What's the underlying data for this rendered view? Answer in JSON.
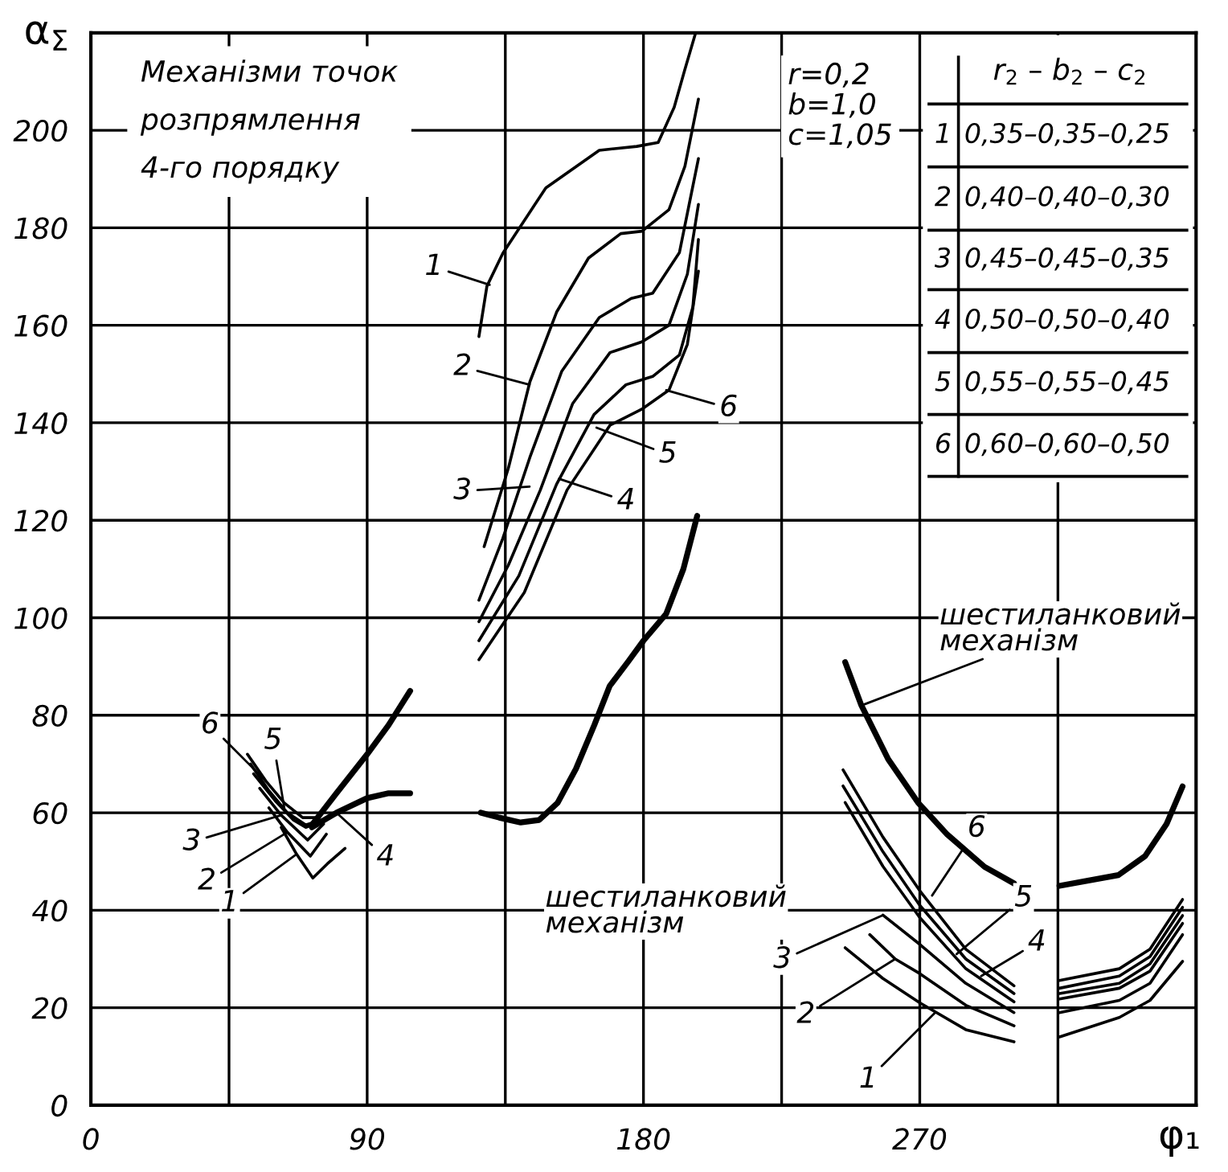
{
  "chart_data": {
    "type": "line",
    "title": "Механізми точок\nрозпрямлення\n4-го порядку",
    "xlabel": "φ₁",
    "ylabel": "α$_{Σ}$",
    "xlim": [
      0,
      360
    ],
    "ylim": [
      0,
      220
    ],
    "xticks": [
      0,
      {
        "value": 45,
        "label": null
      },
      90,
      {
        "value": 135,
        "label": null
      },
      180,
      {
        "value": 225,
        "label": null
      },
      270,
      {
        "value": 315,
        "label": null
      }
    ],
    "yticks": [
      0,
      20,
      40,
      60,
      80,
      100,
      120,
      140,
      160,
      180,
      200
    ],
    "grid": true,
    "legend": false,
    "marker": "none",
    "line_style": "solid",
    "series": [
      {
        "color": "#000000",
        "x": [
          126.4,
          129,
          134.2,
          148.2,
          165.6,
          177.8,
          184.8,
          190,
          193.5,
          197
        ],
        "values": [
          157.7,
          168,
          174.8,
          188.2,
          195.9,
          196.7,
          197.5,
          204.7,
          212.5,
          220
        ]
      },
      {
        "color": "#000000",
        "x": [
          128.1,
          136,
          143,
          151.7,
          162.1,
          172.6,
          179.5,
          188.3,
          193.5,
          197.9
        ],
        "values": [
          114.6,
          130.7,
          148.4,
          162.7,
          173.8,
          178.8,
          179.3,
          183.7,
          192.6,
          206.4
        ]
      },
      {
        "color": "#000000",
        "x": [
          126.4,
          134.2,
          143,
          153.4,
          165.6,
          176,
          183,
          191.7,
          197.9
        ],
        "values": [
          103.6,
          116.3,
          132.9,
          150.6,
          161.6,
          165.5,
          166.6,
          174.9,
          194.2
        ]
      },
      {
        "color": "#000000",
        "x": [
          126.4,
          136,
          146.4,
          156.9,
          169.1,
          179.5,
          188.3,
          194.3,
          197.9
        ],
        "values": [
          99.2,
          110.8,
          126.2,
          143.9,
          154.4,
          156.6,
          160,
          170.5,
          184.8
        ]
      },
      {
        "color": "#000000",
        "x": [
          126.4,
          139.4,
          151.7,
          163.9,
          174.3,
          183,
          191.7,
          196.1,
          197.9
        ],
        "values": [
          95.3,
          108.6,
          127.4,
          141.7,
          147.8,
          149.5,
          153.9,
          163.8,
          177.6
        ]
      },
      {
        "color": "#000000",
        "x": [
          126.4,
          141.2,
          155.1,
          169.1,
          179.5,
          188.3,
          194.3,
          197.9
        ],
        "values": [
          91.4,
          105.2,
          126.2,
          139.5,
          142.8,
          146.7,
          156.1,
          171.1
        ]
      },
      {
        "color": "#000000",
        "x": [
          127,
          133,
          140,
          146,
          152,
          158,
          164,
          169,
          175,
          180,
          187.4,
          193,
          197.5
        ],
        "values": [
          60,
          59,
          58,
          58.5,
          62,
          69,
          78,
          86,
          91,
          95.3,
          100.8,
          110,
          120.9
        ]
      },
      {
        "color": "#000000",
        "x": [
          62,
          67,
          72.3,
          77,
          82.8
        ],
        "values": [
          57,
          51.5,
          46.6,
          49.5,
          52.7
        ]
      },
      {
        "color": "#000000",
        "x": [
          58,
          64,
          71.5,
          76.7
        ],
        "values": [
          61,
          56,
          51.1,
          55.6
        ]
      },
      {
        "color": "#000000",
        "x": [
          55,
          62,
          70.6,
          75.8
        ],
        "values": [
          65,
          59.5,
          54.4,
          57.7
        ]
      },
      {
        "color": "#000000",
        "x": [
          53,
          60,
          66,
          70,
          74
        ],
        "values": [
          68,
          62.5,
          58.5,
          57,
          58
        ]
      },
      {
        "color": "#000000",
        "x": [
          52,
          58,
          64,
          70,
          75
        ],
        "values": [
          70,
          64.5,
          60,
          57.5,
          58.5
        ]
      },
      {
        "color": "#000000",
        "x": [
          51,
          57,
          63,
          69,
          74
        ],
        "values": [
          72,
          66.5,
          62,
          59,
          59
        ]
      },
      {
        "color": "#000000",
        "x": [
          72,
          80,
          90,
          97,
          104
        ],
        "values": [
          57.5,
          64,
          72,
          78,
          85
        ]
      },
      {
        "color": "#000000",
        "x": [
          72,
          80,
          90,
          97,
          104
        ],
        "values": [
          57,
          60,
          63,
          64,
          64
        ]
      },
      {
        "color": "#000000",
        "x": [
          245.7,
          258,
          270,
          285,
          300.7
        ],
        "values": [
          32.3,
          26,
          21,
          15.5,
          13
        ]
      },
      {
        "color": "#000000",
        "x": [
          253.7,
          262,
          270,
          285,
          300.7
        ],
        "values": [
          35,
          30,
          27,
          20.5,
          16.3
        ]
      },
      {
        "color": "#000000",
        "x": [
          258,
          270,
          285,
          300.7
        ],
        "values": [
          39,
          33,
          25,
          19
        ]
      },
      {
        "color": "#000000",
        "x": [
          245.7,
          258,
          270,
          285,
          300.7
        ],
        "values": [
          62.1,
          49,
          38.5,
          28,
          21.2
        ]
      },
      {
        "color": "#000000",
        "x": [
          245,
          258,
          270,
          285,
          300.7
        ],
        "values": [
          65.5,
          52,
          41,
          30,
          22.9
        ]
      },
      {
        "color": "#000000",
        "x": [
          245,
          258,
          270,
          285,
          300.7
        ],
        "values": [
          68.8,
          55,
          44,
          32,
          24.5
        ]
      },
      {
        "color": "#000000",
        "x": [
          245.7,
          251,
          259.7,
          269.4,
          279,
          291.1,
          300.7
        ],
        "values": [
          90.9,
          82,
          71,
          62.1,
          55.5,
          48.9,
          45.5
        ]
      },
      {
        "color": "#000000",
        "x": [
          315.5,
          335,
          345,
          355.6
        ],
        "values": [
          14,
          18,
          21.5,
          29.5
        ]
      },
      {
        "color": "#000000",
        "x": [
          315.5,
          335,
          345,
          355.6
        ],
        "values": [
          19,
          21.5,
          25,
          35
        ]
      },
      {
        "color": "#000000",
        "x": [
          315.5,
          335,
          345,
          355.6
        ],
        "values": [
          21.8,
          24,
          27.5,
          37.3
        ]
      },
      {
        "color": "#000000",
        "x": [
          315.5,
          335,
          345,
          355.6
        ],
        "values": [
          22.9,
          25,
          29,
          38.9
        ]
      },
      {
        "color": "#000000",
        "x": [
          315.5,
          335,
          345,
          355.6
        ],
        "values": [
          24,
          26.5,
          30.5,
          40.6
        ]
      },
      {
        "color": "#000000",
        "x": [
          315.5,
          335,
          345,
          355.6
        ],
        "values": [
          25.6,
          28,
          32,
          42.2
        ]
      },
      {
        "color": "#000000",
        "x": [
          315.5,
          334.7,
          343.4,
          350.4,
          355.6
        ],
        "values": [
          45,
          47.2,
          51.1,
          57.7,
          65.4
        ]
      }
    ],
    "annotations": [
      "r=0,2\nb=1,0\nc=1,05",
      "r$_{2}$ – b$_{2}$ – c$_{2}$",
      "1",
      "2",
      "3",
      "4",
      "5",
      "6",
      "0,35–0,35–0,25",
      "0,40–0,40–0,30",
      "0,45–0,45–0,35",
      "0,50–0,50–0,40",
      "0,55–0,55–0,45",
      "0,60–0,60–0,50",
      {
        "text": "1",
        "x": 129.9,
        "y": 168.3
      },
      {
        "text": "2",
        "x": 142.9,
        "y": 147.8
      },
      {
        "text": "3",
        "x": 142.9,
        "y": 126.9
      },
      {
        "text": "4",
        "x": 152.5,
        "y": 128.5
      },
      {
        "text": "5",
        "x": 164.7,
        "y": 139
      },
      {
        "text": "6",
        "x": 187.4,
        "y": 146.7
      },
      {
        "text": "1",
        "x": 67,
        "y": 51.5
      },
      {
        "text": "2",
        "x": 64,
        "y": 56
      },
      {
        "text": "3",
        "x": 62,
        "y": 59.5
      },
      {
        "text": "4",
        "x": 80,
        "y": 60
      },
      {
        "text": "5",
        "x": 63,
        "y": 61
      },
      {
        "text": "6",
        "x": 57,
        "y": 66.5
      },
      {
        "text": "1",
        "x": 275,
        "y": 19
      },
      {
        "text": "2",
        "x": 262,
        "y": 30
      },
      {
        "text": "3",
        "x": 258,
        "y": 39
      },
      {
        "text": "4",
        "x": 290,
        "y": 26.5
      },
      {
        "text": "5",
        "x": 282,
        "y": 31
      },
      {
        "text": "6",
        "x": 274,
        "y": 43
      },
      {
        "text": "шестиланковий\nмеханізм",
        "x": 148,
        "y": 59
      },
      {
        "text": "шестиланковий\nмеханізм",
        "x": 251,
        "y": 82
      }
    ]
  }
}
